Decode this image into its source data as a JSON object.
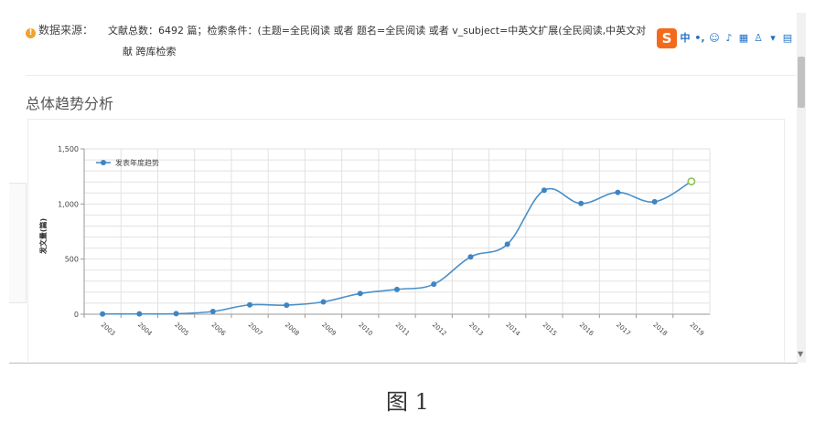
{
  "source": {
    "label": "数据来源：",
    "text": "文献总数：6492 篇；检索条件：(主题=全民阅读 或者 题名=全民阅读 或者 v_subject=中英文扩展(全民阅读,中英文对",
    "text_cont": "献 跨库检索"
  },
  "section_title": "总体趋势分析",
  "ime_toolbar": {
    "logo": "S",
    "items": [
      "中",
      "•,",
      "☺",
      "♪",
      "▦",
      "♙",
      "▾",
      "▤"
    ]
  },
  "caption": "图 1",
  "colors": {
    "line": "#4a90c8",
    "point": "#3f85c2",
    "last_point": "#8cc152",
    "grid": "#e2e2e2"
  },
  "chart_data": {
    "type": "line",
    "title": "",
    "xlabel": "",
    "ylabel": "发文量(篇)",
    "x": [
      "2003",
      "2004",
      "2005",
      "2006",
      "2007",
      "2008",
      "2009",
      "2010",
      "2011",
      "2012",
      "2013",
      "2014",
      "2015",
      "2016",
      "2017",
      "2018",
      "2019"
    ],
    "series": [
      {
        "name": "发表年度趋势",
        "values": [
          2,
          3,
          5,
          25,
          85,
          82,
          112,
          188,
          225,
          272,
          520,
          635,
          1125,
          1005,
          1105,
          1020,
          1205
        ]
      }
    ],
    "ylim": [
      0,
      1500
    ],
    "yticks": [
      0,
      500,
      1000,
      1500
    ],
    "ytick_labels": [
      "0",
      "500",
      "1,000",
      "1,500"
    ],
    "grid": true,
    "legend_position": "top-left"
  }
}
